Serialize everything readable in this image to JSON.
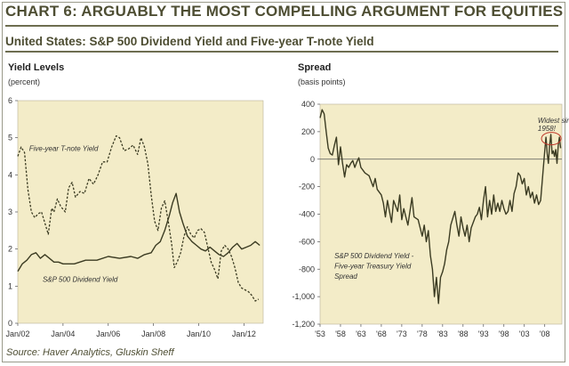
{
  "header": {
    "title": "CHART 6: ARGUABLY THE MOST COMPELLING ARGUMENT FOR EQUITIES",
    "subtitle": "United States: S&P 500 Dividend Yield and Five-year T-note Yield"
  },
  "footer": {
    "source": "Source: Haver Analytics, Gluskin Sheff"
  },
  "colors": {
    "background": "#f3ecc8",
    "title": "#4e4e33",
    "series_line": "#3b3b22"
  },
  "chart_data": [
    {
      "type": "line",
      "title": "Yield Levels",
      "ylabel": "(percent)",
      "xlabel": "",
      "xlim": [
        2002.0,
        2012.85
      ],
      "ylim": [
        0,
        6
      ],
      "xticks": [
        {
          "value": 2002,
          "label": "Jan/02"
        },
        {
          "value": 2004,
          "label": "Jan/04"
        },
        {
          "value": 2006,
          "label": "Jan/06"
        },
        {
          "value": 2008,
          "label": "Jan/08"
        },
        {
          "value": 2010,
          "label": "Jan/10"
        },
        {
          "value": 2012,
          "label": "Jan/12"
        }
      ],
      "yticks": [
        0,
        1,
        2,
        3,
        4,
        5,
        6
      ],
      "grid": false,
      "series": [
        {
          "name": "Five-year T-note Yield",
          "style": "dashed",
          "x": [
            2002.0,
            2002.15,
            2002.3,
            2002.45,
            2002.6,
            2002.75,
            2002.9,
            2003.05,
            2003.2,
            2003.35,
            2003.5,
            2003.6,
            2003.75,
            2003.9,
            2004.1,
            2004.25,
            2004.4,
            2004.55,
            2004.75,
            2004.95,
            2005.15,
            2005.35,
            2005.55,
            2005.75,
            2005.95,
            2006.15,
            2006.35,
            2006.5,
            2006.7,
            2006.9,
            2007.1,
            2007.3,
            2007.45,
            2007.6,
            2007.75,
            2007.9,
            2008.05,
            2008.2,
            2008.35,
            2008.5,
            2008.65,
            2008.8,
            2008.92,
            2009.05,
            2009.2,
            2009.35,
            2009.5,
            2009.65,
            2009.8,
            2009.95,
            2010.1,
            2010.25,
            2010.4,
            2010.55,
            2010.7,
            2010.85,
            2011.0,
            2011.15,
            2011.3,
            2011.45,
            2011.6,
            2011.75,
            2011.9,
            2012.05,
            2012.2,
            2012.35,
            2012.5,
            2012.65
          ],
          "values": [
            4.5,
            4.75,
            4.6,
            3.6,
            3.0,
            2.85,
            2.95,
            3.0,
            2.7,
            2.4,
            3.1,
            3.0,
            3.35,
            3.15,
            3.0,
            3.65,
            3.8,
            3.4,
            3.55,
            3.5,
            3.9,
            3.75,
            4.0,
            4.35,
            4.35,
            4.75,
            5.05,
            5.0,
            4.65,
            4.7,
            4.8,
            4.55,
            5.0,
            4.75,
            4.3,
            3.45,
            2.75,
            2.5,
            3.1,
            3.3,
            2.75,
            2.15,
            1.5,
            1.65,
            1.9,
            2.35,
            2.6,
            2.4,
            2.3,
            2.5,
            2.55,
            2.45,
            2.05,
            1.65,
            1.45,
            1.2,
            1.95,
            2.1,
            2.0,
            1.8,
            1.5,
            1.1,
            0.95,
            0.9,
            0.85,
            0.75,
            0.6,
            0.65
          ]
        },
        {
          "name": "S&P 500 Dividend Yield",
          "style": "solid",
          "x": [
            2002.0,
            2002.2,
            2002.4,
            2002.6,
            2002.8,
            2003.0,
            2003.2,
            2003.4,
            2003.6,
            2003.8,
            2004.0,
            2004.5,
            2005.0,
            2005.5,
            2006.0,
            2006.5,
            2007.0,
            2007.3,
            2007.6,
            2007.9,
            2008.1,
            2008.3,
            2008.5,
            2008.7,
            2008.85,
            2009.0,
            2009.15,
            2009.3,
            2009.5,
            2009.7,
            2009.9,
            2010.1,
            2010.3,
            2010.5,
            2010.7,
            2010.9,
            2011.1,
            2011.3,
            2011.5,
            2011.7,
            2011.9,
            2012.1,
            2012.3,
            2012.5,
            2012.7
          ],
          "values": [
            1.4,
            1.6,
            1.7,
            1.85,
            1.9,
            1.75,
            1.85,
            1.75,
            1.65,
            1.65,
            1.6,
            1.6,
            1.7,
            1.7,
            1.8,
            1.75,
            1.8,
            1.75,
            1.85,
            1.9,
            2.1,
            2.2,
            2.5,
            2.9,
            3.25,
            3.5,
            3.0,
            2.7,
            2.35,
            2.2,
            2.1,
            2.0,
            1.95,
            2.05,
            1.95,
            1.85,
            1.8,
            1.9,
            2.05,
            2.15,
            2.0,
            2.05,
            2.1,
            2.2,
            2.1
          ]
        }
      ],
      "annotations": [
        {
          "text": "Five-year T-note Yield",
          "x": 2002.5,
          "y": 4.65
        },
        {
          "text": "S&P 500 Dividend Yield",
          "x": 2003.1,
          "y": 1.12
        }
      ]
    },
    {
      "type": "line",
      "title": "Spread",
      "ylabel": "(basis points)",
      "xlabel": "",
      "xlim": [
        1953,
        2012.2
      ],
      "ylim": [
        -1200,
        400
      ],
      "xticks": [
        {
          "value": 1953,
          "label": "'53"
        },
        {
          "value": 1958,
          "label": "'58"
        },
        {
          "value": 1963,
          "label": "'63"
        },
        {
          "value": 1968,
          "label": "'68"
        },
        {
          "value": 1973,
          "label": "'73"
        },
        {
          "value": 1978,
          "label": "'78"
        },
        {
          "value": 1983,
          "label": "'83"
        },
        {
          "value": 1988,
          "label": "'88"
        },
        {
          "value": 1993,
          "label": "'93"
        },
        {
          "value": 1998,
          "label": "'98"
        },
        {
          "value": 2003,
          "label": "'03"
        },
        {
          "value": 2008,
          "label": "'08"
        }
      ],
      "yticks": [
        -1200,
        -1000,
        -800,
        -600,
        -400,
        -200,
        0,
        200,
        400
      ],
      "ytick_labels": [
        "-1,200",
        "-1,000",
        "-800",
        "-600",
        "-400",
        "-200",
        "0",
        "200",
        "400"
      ],
      "zero_line": true,
      "grid": false,
      "series": [
        {
          "name": "S&P 500 Dividend Yield - Five-year Treasury Yield Spread",
          "style": "solid",
          "x": [
            1953,
            1953.5,
            1954,
            1954.5,
            1955,
            1955.5,
            1956,
            1956.5,
            1957,
            1957.5,
            1958,
            1958.5,
            1959,
            1959.5,
            1960,
            1960.5,
            1961,
            1961.5,
            1962,
            1962.5,
            1963,
            1963.5,
            1964,
            1965,
            1966,
            1966.5,
            1967,
            1968,
            1968.5,
            1969,
            1969.5,
            1970,
            1970.5,
            1971,
            1972,
            1972.5,
            1973,
            1973.5,
            1974,
            1974.5,
            1975,
            1975.5,
            1976,
            1977,
            1978,
            1978.5,
            1979,
            1979.5,
            1980,
            1980.5,
            1981,
            1981.5,
            1982,
            1982.5,
            1983,
            1983.5,
            1984,
            1984.5,
            1985,
            1986,
            1986.5,
            1987,
            1987.5,
            1988,
            1988.5,
            1989,
            1989.5,
            1990,
            1991,
            1991.5,
            1992,
            1992.5,
            1993,
            1993.5,
            1994,
            1994.5,
            1995,
            1995.5,
            1996,
            1996.5,
            1997,
            1997.5,
            1998,
            1998.5,
            1999,
            1999.5,
            2000,
            2000.5,
            2001,
            2001.5,
            2002,
            2002.5,
            2003,
            2003.5,
            2004,
            2004.5,
            2005,
            2005.5,
            2006,
            2006.5,
            2007,
            2007.5,
            2008,
            2008.3,
            2008.6,
            2008.9,
            2009.2,
            2009.5,
            2009.8,
            2010.1,
            2010.4,
            2010.7,
            2011,
            2011.3,
            2011.6,
            2011.9
          ],
          "values": [
            300,
            360,
            330,
            200,
            80,
            40,
            30,
            100,
            160,
            -40,
            90,
            -30,
            -130,
            -40,
            -60,
            -30,
            -10,
            -60,
            -20,
            10,
            -60,
            -80,
            -100,
            -120,
            -200,
            -140,
            -220,
            -260,
            -320,
            -420,
            -300,
            -380,
            -460,
            -300,
            -380,
            -260,
            -440,
            -360,
            -420,
            -480,
            -380,
            -280,
            -420,
            -440,
            -560,
            -480,
            -600,
            -520,
            -700,
            -800,
            -1000,
            -860,
            -1050,
            -860,
            -820,
            -760,
            -660,
            -600,
            -480,
            -380,
            -480,
            -560,
            -420,
            -500,
            -560,
            -480,
            -600,
            -500,
            -420,
            -400,
            -350,
            -440,
            -300,
            -200,
            -420,
            -300,
            -400,
            -260,
            -380,
            -320,
            -380,
            -300,
            -360,
            -400,
            -380,
            -300,
            -380,
            -250,
            -200,
            -100,
            -120,
            -180,
            -140,
            -260,
            -200,
            -280,
            -240,
            -320,
            -260,
            -330,
            -300,
            -120,
            60,
            160,
            40,
            -30,
            100,
            180,
            40,
            60,
            20,
            70,
            -30,
            100,
            160,
            80
          ]
        }
      ],
      "annotations": [
        {
          "text": "Widest since",
          "x": 2006.3,
          "y": 265
        },
        {
          "text": "1958!",
          "x": 2006.3,
          "y": 205
        },
        {
          "text": "S&P 500 Dividend Yield -",
          "x": 1956.5,
          "y": -720
        },
        {
          "text": "Five-year Treasury Yield",
          "x": 1956.5,
          "y": -795
        },
        {
          "text": "Spread",
          "x": 1956.5,
          "y": -870
        }
      ]
    }
  ]
}
